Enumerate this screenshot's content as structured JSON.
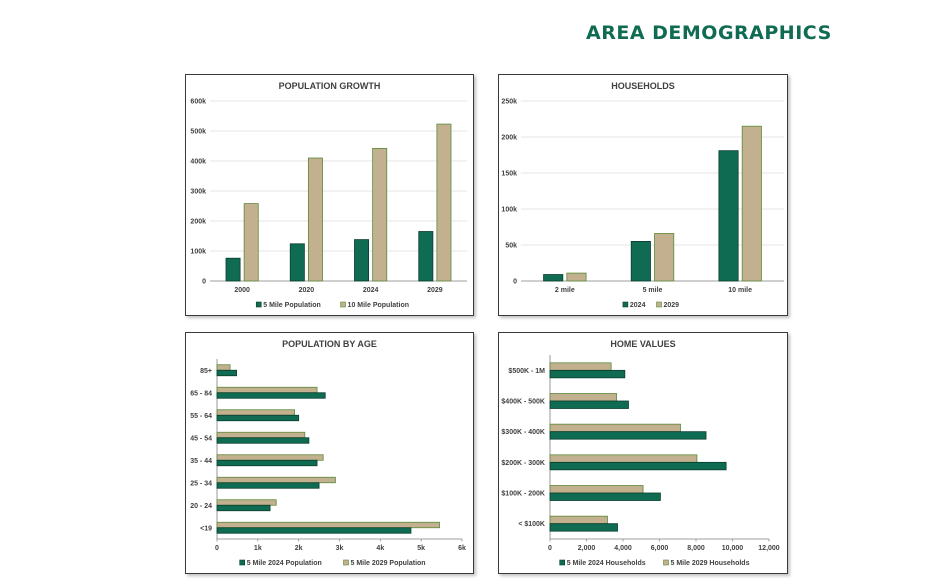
{
  "page": {
    "title": "AREA DEMOGRAPHICS"
  },
  "colors": {
    "green": "#0f6b52",
    "tan": "#c3b08f",
    "title": "#0f6b52",
    "grid": "#dcdcdc",
    "axis": "#7f7f7f"
  },
  "chart_data": [
    {
      "id": "population-growth",
      "type": "bar",
      "title": "POPULATION GROWTH",
      "categories": [
        "2000",
        "2020",
        "2024",
        "2029"
      ],
      "series": [
        {
          "name": "5 Mile Population",
          "values": [
            76000,
            124000,
            138000,
            165000
          ]
        },
        {
          "name": "10 Mile Population",
          "values": [
            258000,
            410000,
            442000,
            523000
          ]
        }
      ],
      "ylim": [
        0,
        600000
      ],
      "yticks": [
        0,
        100000,
        200000,
        300000,
        400000,
        500000,
        600000
      ],
      "ytick_labels": [
        "0",
        "100k",
        "200k",
        "300k",
        "400k",
        "500k",
        "600k"
      ],
      "grid": true,
      "legend": "bottom"
    },
    {
      "id": "households",
      "type": "bar",
      "title": "HOUSEHOLDS",
      "categories": [
        "2 mile",
        "5 mile",
        "10 mile"
      ],
      "series": [
        {
          "name": "2024",
          "values": [
            9000,
            55000,
            181000
          ]
        },
        {
          "name": "2029",
          "values": [
            11000,
            66000,
            215000
          ]
        }
      ],
      "ylim": [
        0,
        250000
      ],
      "yticks": [
        0,
        50000,
        100000,
        150000,
        200000,
        250000
      ],
      "ytick_labels": [
        "0",
        "50k",
        "100k",
        "150k",
        "200k",
        "250k"
      ],
      "grid": true,
      "legend": "bottom"
    },
    {
      "id": "population-by-age",
      "type": "bar",
      "orientation": "horizontal",
      "title": "POPULATION BY AGE",
      "categories": [
        "<19",
        "20 - 24",
        "25 - 34",
        "35 - 44",
        "45 - 54",
        "55 - 64",
        "65 - 84",
        "85+"
      ],
      "series": [
        {
          "name": "5 Mile 2024 Population",
          "values": [
            4750,
            1300,
            2500,
            2450,
            2250,
            2000,
            2650,
            480
          ]
        },
        {
          "name": "5 Mile 2029 Population",
          "values": [
            5450,
            1450,
            2900,
            2600,
            2150,
            1900,
            2450,
            320
          ]
        }
      ],
      "xlim": [
        0,
        6000
      ],
      "xticks": [
        0,
        1000,
        2000,
        3000,
        4000,
        5000,
        6000
      ],
      "xtick_labels": [
        "0",
        "1k",
        "2k",
        "3k",
        "4k",
        "5k",
        "6k"
      ],
      "grid": false,
      "legend": "bottom"
    },
    {
      "id": "home-values",
      "type": "bar",
      "orientation": "horizontal",
      "title": "HOME VALUES",
      "categories": [
        "< $100K",
        "$100K - 200K",
        "$200K - 300K",
        "$300K - 400K",
        "$400K - 500K",
        "$500K - 1M"
      ],
      "series": [
        {
          "name": "5 Mile 2024 Households",
          "values": [
            3700,
            6050,
            9650,
            8550,
            4300,
            4100
          ]
        },
        {
          "name": "5 Mile 2029 Households",
          "values": [
            3150,
            5100,
            8050,
            7150,
            3650,
            3350
          ]
        }
      ],
      "xlim": [
        0,
        12000
      ],
      "xticks": [
        0,
        2000,
        4000,
        6000,
        8000,
        10000,
        12000
      ],
      "xtick_labels": [
        "0",
        "2,000",
        "4,000",
        "6,000",
        "8,000",
        "10,000",
        "12,000"
      ],
      "grid": false,
      "legend": "bottom"
    }
  ]
}
